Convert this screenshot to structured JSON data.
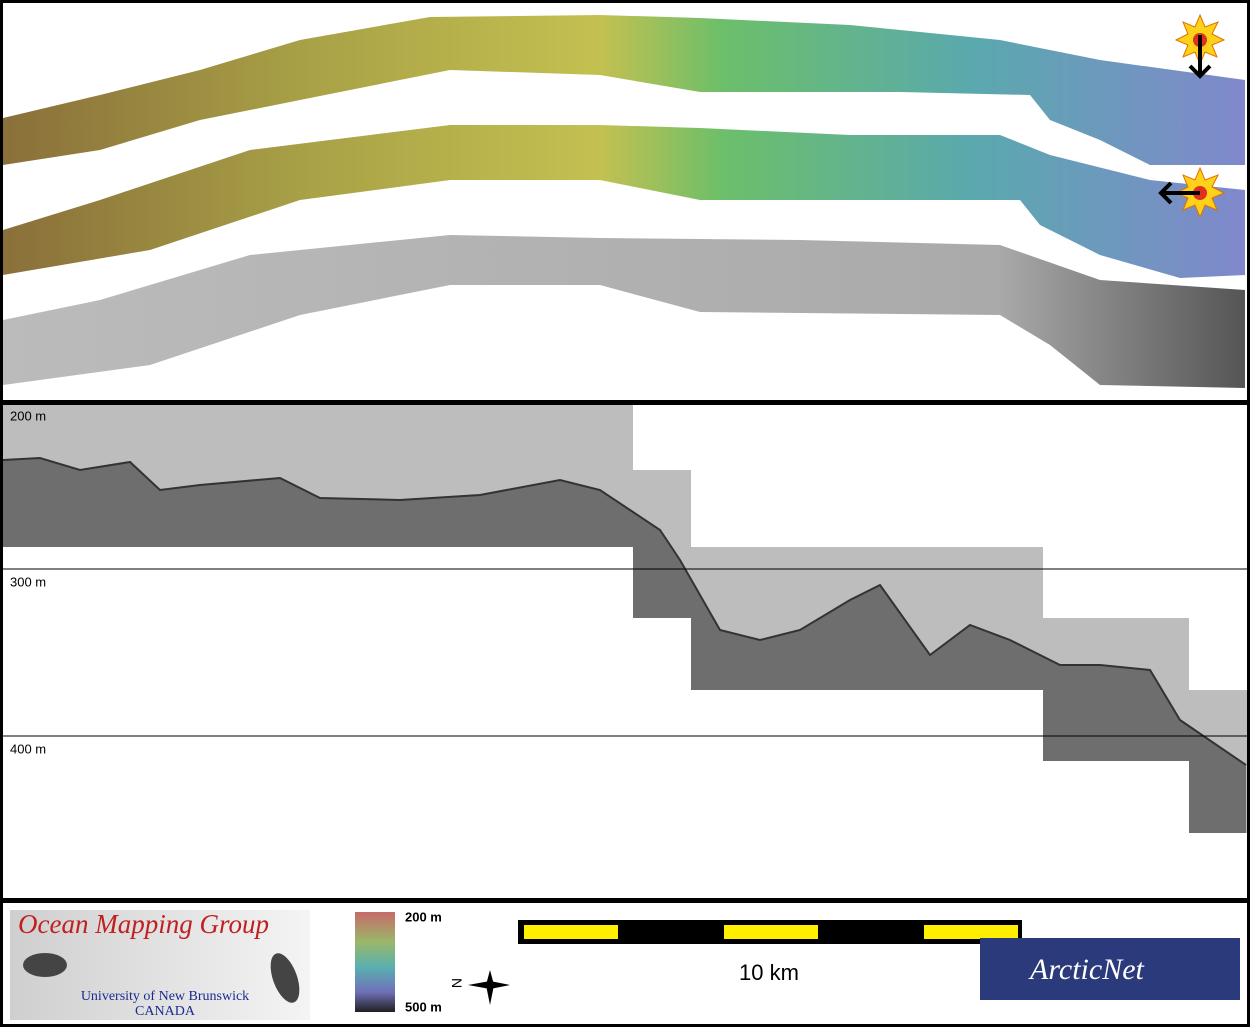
{
  "profile": {
    "depth_labels": [
      "200 m",
      "300 m",
      "400 m"
    ]
  },
  "footer": {
    "logo": {
      "title": "Ocean Mapping Group",
      "institution": "University of New Brunswick",
      "country": "CANADA"
    },
    "color_scale": {
      "top": "200 m",
      "bottom": "500 m"
    },
    "north": "N",
    "scale_bar": "10 km",
    "partner": "ArcticNet"
  }
}
